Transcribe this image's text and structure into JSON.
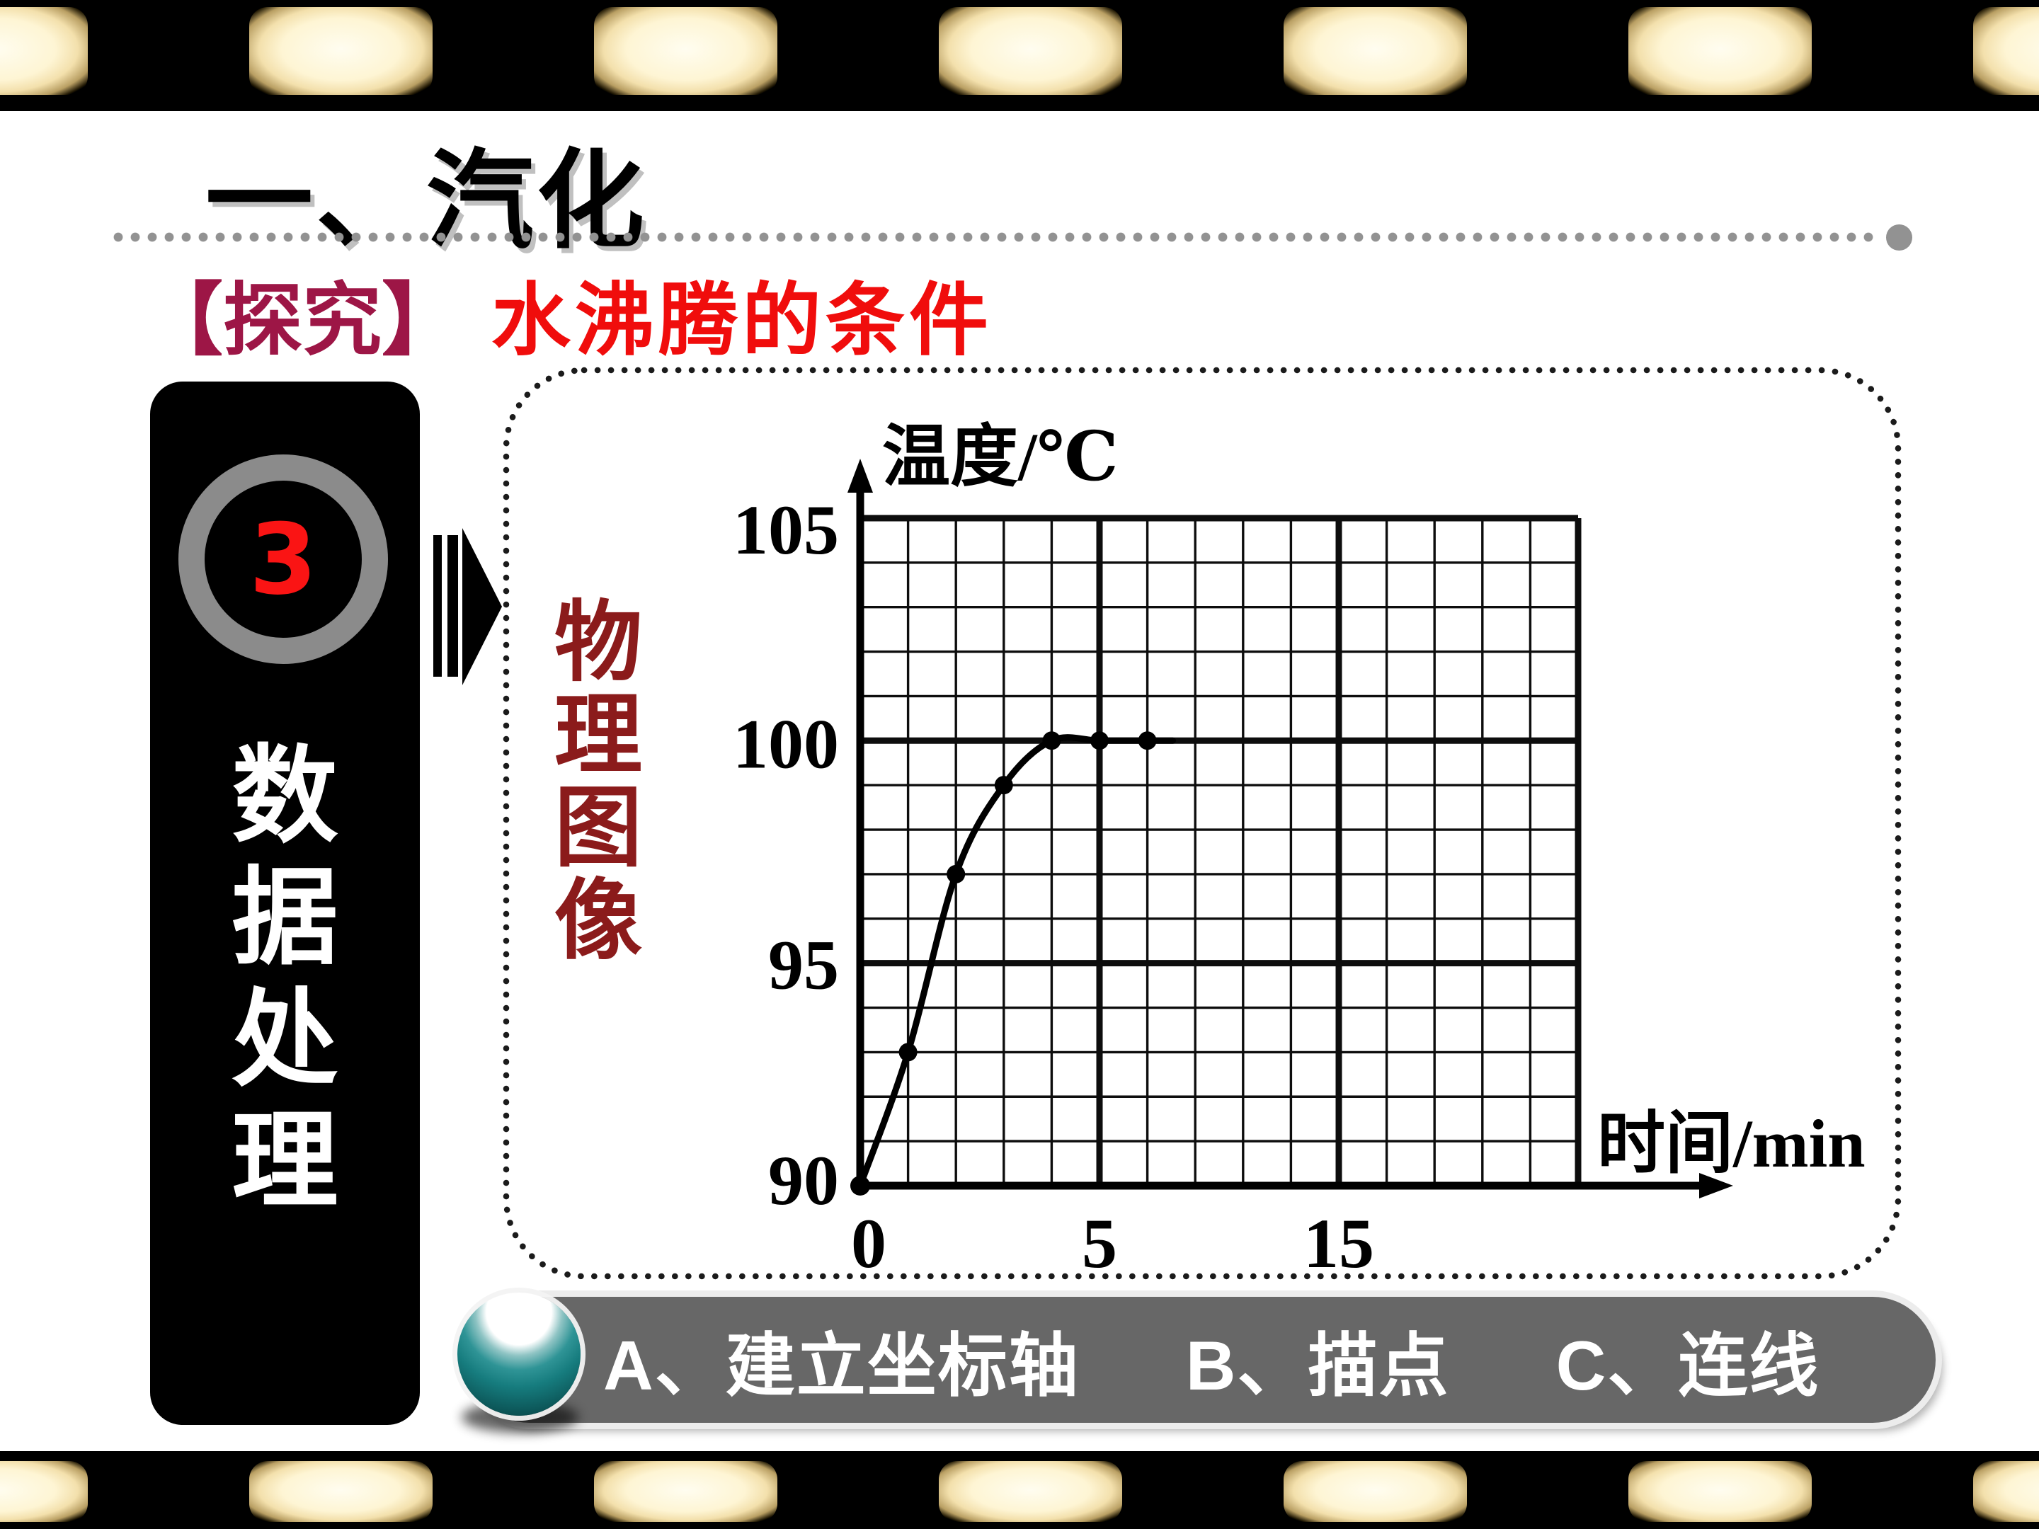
{
  "page": {
    "title": "一、汽化"
  },
  "section": {
    "bracket_label": "【探究】",
    "title": "水沸腾的条件"
  },
  "step": {
    "number": "3",
    "label": "数据处理"
  },
  "panel": {
    "caption": "物理图像"
  },
  "footer": {
    "items": [
      "A、建立坐标轴",
      "B、描点",
      "C、连线"
    ]
  },
  "film_strip": {
    "cells_per_row": 7
  },
  "colors": {
    "bracket_red": "#9D1646",
    "title_red": "#F00D0C",
    "step_number_red": "#FA1414",
    "caption_red": "#8B1B1B",
    "ring_gray": "#8B8B8B",
    "bar_gray": "#676767",
    "sphere_teal": "#167C7E",
    "separator_gray": "#929292",
    "ink": "#0D0D0D"
  },
  "chart_data": {
    "type": "line",
    "title": "",
    "xlabel": "时间/min",
    "ylabel": "温度/℃",
    "ylim": [
      90,
      105
    ],
    "grid": {
      "cols": 15,
      "rows": 15,
      "major_every": 5,
      "minor_on": true
    },
    "x_ticks": [
      {
        "label": "0",
        "cell": 0
      },
      {
        "label": "5",
        "cell": 5
      },
      {
        "label": "15",
        "cell": 10
      }
    ],
    "y_ticks": [
      {
        "label": "105",
        "value": 105
      },
      {
        "label": "100",
        "value": 100
      },
      {
        "label": "95",
        "value": 95
      },
      {
        "label": "90",
        "value": 90
      }
    ],
    "series": [
      {
        "points": [
          {
            "t": 0,
            "temp": 90
          },
          {
            "t": 1,
            "temp": 93
          },
          {
            "t": 2,
            "temp": 97
          },
          {
            "t": 3,
            "temp": 99
          },
          {
            "t": 4,
            "temp": 100
          },
          {
            "t": 5,
            "temp": 100
          },
          {
            "t": 6,
            "temp": 100
          }
        ]
      }
    ]
  }
}
